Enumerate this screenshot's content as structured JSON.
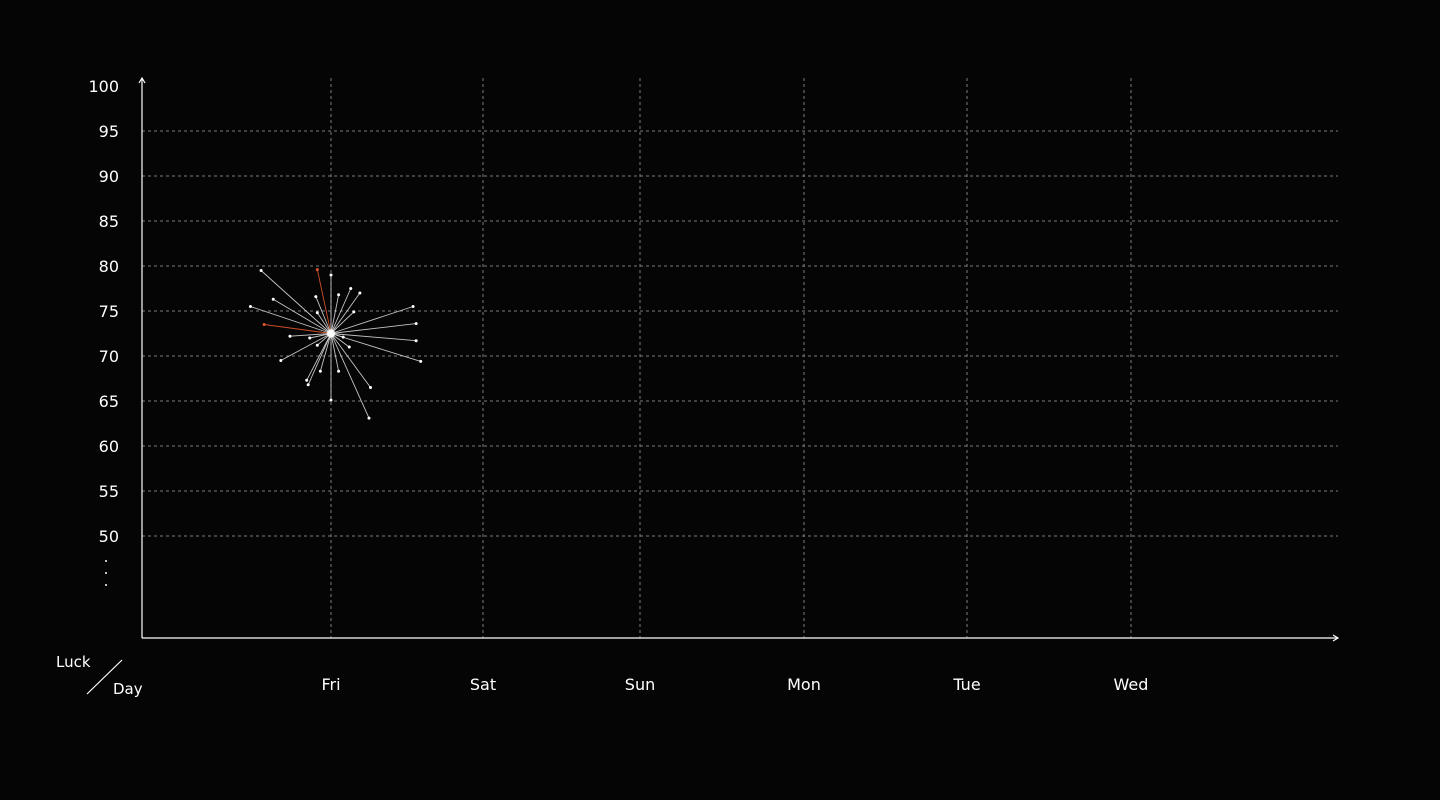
{
  "chart_data": {
    "type": "scatter",
    "title": "",
    "xlabel": "Day",
    "ylabel": "Luck",
    "categories": [
      "Fri",
      "Sat",
      "Sun",
      "Mon",
      "Tue",
      "Wed"
    ],
    "ylim": [
      39,
      100
    ],
    "y_ticks": [
      100,
      95,
      90,
      85,
      80,
      75,
      70,
      65,
      60,
      55,
      50
    ],
    "y_continuation": "⋮",
    "grid": true,
    "legend": "none",
    "colors": {
      "background": "#060506",
      "axis": "#ffffff",
      "grid": "#7a7a7a",
      "spoke": "#d9d9d9",
      "highlight": "#e2562b"
    },
    "center": {
      "day": "Fri",
      "value": 72.5
    },
    "points": [
      {
        "dx": -0.46,
        "value": 79.5,
        "highlight": false
      },
      {
        "dx": -0.09,
        "value": 79.6,
        "highlight": true
      },
      {
        "dx": 0.0,
        "value": 79.0,
        "highlight": false
      },
      {
        "dx": -0.38,
        "value": 76.3,
        "highlight": false
      },
      {
        "dx": -0.1,
        "value": 76.6,
        "highlight": false
      },
      {
        "dx": 0.05,
        "value": 76.8,
        "highlight": false
      },
      {
        "dx": 0.13,
        "value": 77.5,
        "highlight": false
      },
      {
        "dx": 0.19,
        "value": 77.0,
        "highlight": false
      },
      {
        "dx": -0.53,
        "value": 75.5,
        "highlight": false
      },
      {
        "dx": 0.54,
        "value": 75.5,
        "highlight": false
      },
      {
        "dx": -0.09,
        "value": 74.8,
        "highlight": false
      },
      {
        "dx": 0.15,
        "value": 74.9,
        "highlight": false
      },
      {
        "dx": -0.44,
        "value": 73.5,
        "highlight": true
      },
      {
        "dx": 0.56,
        "value": 73.6,
        "highlight": false
      },
      {
        "dx": -0.27,
        "value": 72.2,
        "highlight": false
      },
      {
        "dx": -0.14,
        "value": 72.0,
        "highlight": false
      },
      {
        "dx": 0.08,
        "value": 72.1,
        "highlight": false
      },
      {
        "dx": 0.56,
        "value": 71.7,
        "highlight": false
      },
      {
        "dx": -0.09,
        "value": 71.2,
        "highlight": false
      },
      {
        "dx": 0.12,
        "value": 71.0,
        "highlight": false
      },
      {
        "dx": -0.33,
        "value": 69.5,
        "highlight": false
      },
      {
        "dx": 0.59,
        "value": 69.4,
        "highlight": false
      },
      {
        "dx": -0.07,
        "value": 68.3,
        "highlight": false
      },
      {
        "dx": 0.05,
        "value": 68.3,
        "highlight": false
      },
      {
        "dx": -0.16,
        "value": 67.3,
        "highlight": false
      },
      {
        "dx": -0.15,
        "value": 66.8,
        "highlight": false
      },
      {
        "dx": 0.26,
        "value": 66.5,
        "highlight": false
      },
      {
        "dx": 0.0,
        "value": 65.1,
        "highlight": false
      },
      {
        "dx": 0.25,
        "value": 63.1,
        "highlight": false
      }
    ]
  }
}
